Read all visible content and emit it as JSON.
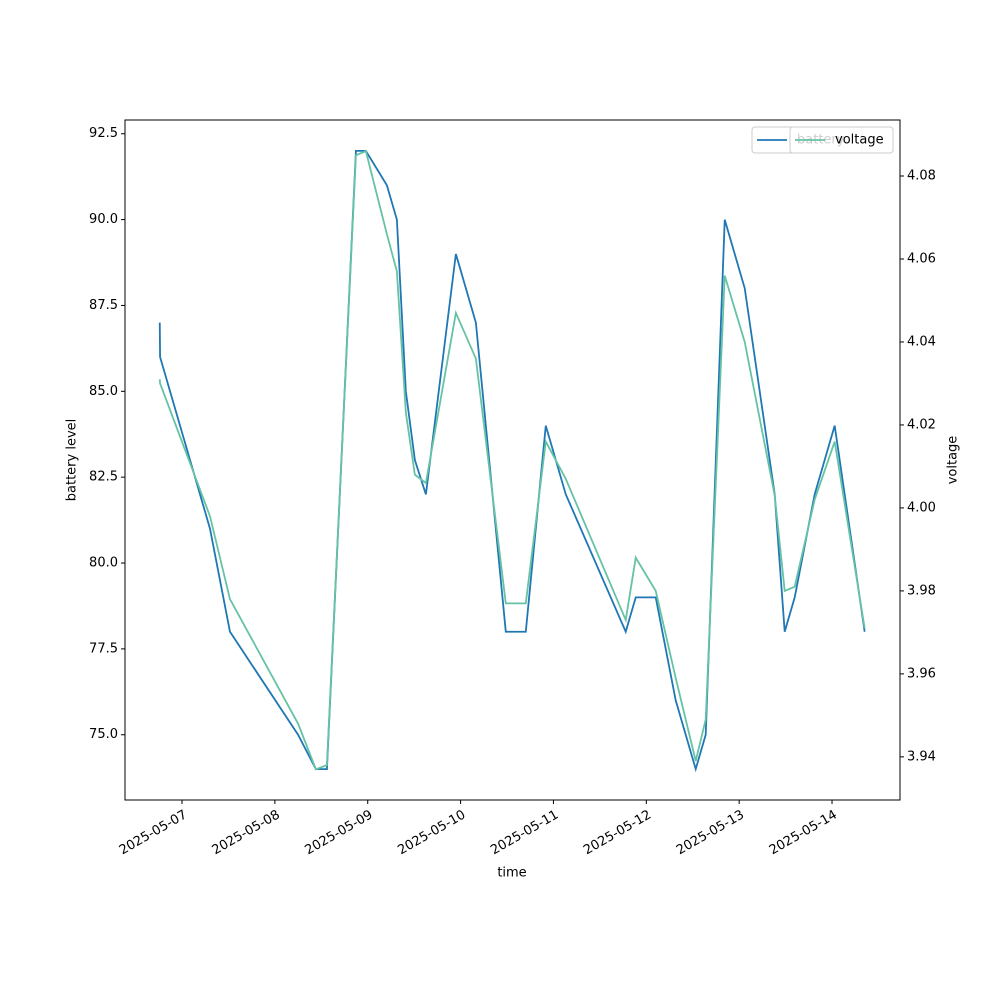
{
  "chart_data": {
    "type": "line",
    "xlabel": "time",
    "ylabel": "battery level",
    "y2label": "voltage",
    "x": [
      "2025-05-06T18:15",
      "2025-05-06T18:20",
      "2025-05-07T07:14",
      "2025-05-07T12:24",
      "2025-05-08T06:00",
      "2025-05-08T10:36",
      "2025-05-08T13:27",
      "2025-05-08T20:57",
      "2025-05-08T23:31",
      "2025-05-09T04:57",
      "2025-05-09T07:32",
      "2025-05-09T09:51",
      "2025-05-09T12:11",
      "2025-05-09T15:02",
      "2025-05-09T22:47",
      "2025-05-10T03:57",
      "2025-05-10T11:41",
      "2025-05-10T16:51",
      "2025-05-10T22:01",
      "2025-05-11T03:11",
      "2025-05-11T18:41",
      "2025-05-11T21:16",
      "2025-05-12T02:26",
      "2025-05-12T07:36",
      "2025-05-12T12:46",
      "2025-05-12T15:21",
      "2025-05-12T20:16",
      "2025-05-13T01:26",
      "2025-05-13T09:11",
      "2025-05-13T11:46",
      "2025-05-13T14:21",
      "2025-05-13T19:31",
      "2025-05-14T00:41",
      "2025-05-14T08:26"
    ],
    "series": [
      {
        "name": "battery",
        "color": "#1f77b4",
        "values": [
          87,
          86,
          81,
          78,
          75,
          74,
          74,
          92,
          92,
          91,
          90,
          85,
          83,
          82,
          89,
          87,
          78,
          78,
          84,
          82,
          78,
          79,
          79,
          76,
          74,
          75,
          90,
          88,
          82,
          78,
          79,
          82,
          84,
          78
        ]
      },
      {
        "name": "voltage",
        "color": "#66c2a5",
        "axis": "y2",
        "values": [
          4.031,
          4.03,
          3.998,
          3.978,
          3.948,
          3.937,
          3.938,
          4.085,
          4.086,
          4.066,
          4.057,
          4.023,
          4.008,
          4.006,
          4.047,
          4.036,
          3.977,
          3.977,
          4.016,
          4.007,
          3.973,
          3.988,
          3.98,
          3.959,
          3.939,
          3.949,
          4.056,
          4.04,
          4.003,
          3.98,
          3.981,
          4.002,
          4.016,
          3.971
        ]
      }
    ],
    "xlim": [
      "2025-05-06T09:16",
      "2025-05-14T17:34"
    ],
    "xticks": [
      "2025-05-07",
      "2025-05-08",
      "2025-05-09",
      "2025-05-10",
      "2025-05-11",
      "2025-05-12",
      "2025-05-13",
      "2025-05-14"
    ],
    "ylim": [
      73.1,
      92.9
    ],
    "yticks": [
      {
        "value": 75,
        "label": "75.0"
      },
      77.5,
      {
        "value": 80,
        "label": "80.0"
      },
      82.5,
      {
        "value": 85,
        "label": "85.0"
      },
      87.5,
      {
        "value": 90,
        "label": "90.0"
      },
      92.5
    ],
    "y2lim": [
      3.9296,
      4.0935
    ],
    "y2ticks": [
      3.94,
      3.96,
      3.98,
      {
        "value": 4.0,
        "label": "4.00"
      },
      4.02,
      4.04,
      4.06,
      4.08
    ]
  }
}
